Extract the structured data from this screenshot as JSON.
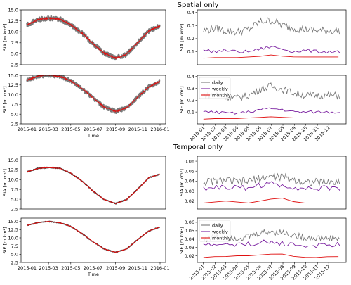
{
  "sections": [
    {
      "title": "Spatial only"
    },
    {
      "title": "Temporal only"
    }
  ],
  "colors": {
    "ensemble": "#7a7a7a",
    "mean": "#e01010",
    "daily": "#7a7a7a",
    "weekly": "#7a1fa0",
    "monthly": "#e01010"
  },
  "chart_data": [
    {
      "type": "line",
      "section": "Spatial only",
      "variable": "SIA",
      "ylabel": "SIA [m km²]",
      "xlabel": "",
      "ylim": [
        2.5,
        15.0
      ],
      "yticks": [
        2.5,
        5.0,
        7.5,
        10.0,
        12.5,
        15.0
      ],
      "ytick_labels": [
        "2.5",
        "5.0",
        "7.5",
        "10.0",
        "12.5",
        "15.0"
      ],
      "xlim": [
        "2015-01-01",
        "2015-12-31"
      ],
      "series": [
        {
          "values_note_x": [
            "2015-01-01",
            "2015-02-01",
            "2015-03-01",
            "2015-04-01",
            "2015-05-01",
            "2015-06-01",
            "2015-07-01",
            "2015-08-01",
            "2015-09-01",
            "2015-10-01",
            "2015-11-01",
            "2015-12-01",
            "2015-12-31"
          ],
          "values": [
            11.6,
            12.8,
            13.1,
            12.9,
            11.6,
            9.7,
            7.3,
            5.1,
            4.0,
            4.9,
            7.6,
            10.2,
            11.3
          ]
        }
      ],
      "spread": 0.5
    },
    {
      "type": "line",
      "section": "Spatial only",
      "variable": "SIE",
      "ylabel": "SIE [m km²]",
      "xlabel": "Time",
      "ylim": [
        2.5,
        15.0
      ],
      "yticks": [
        2.5,
        5.0,
        7.5,
        10.0,
        12.5,
        15.0
      ],
      "ytick_labels": [
        "2.5",
        "5.0",
        "7.5",
        "10.0",
        "12.5",
        "15.0"
      ],
      "xlim": [
        "2015-01-01",
        "2015-12-31"
      ],
      "xticks": [
        "2015-01-01",
        "2015-03-01",
        "2015-05-01",
        "2015-07-01",
        "2015-09-01",
        "2015-11-01",
        "2016-01-01"
      ],
      "xtick_labels": [
        "2015-01",
        "2015-03",
        "2015-05",
        "2015-07",
        "2015-09",
        "2015-11",
        "2016-01"
      ],
      "series": [
        {
          "values_note_x": [
            "2015-01-01",
            "2015-02-01",
            "2015-03-01",
            "2015-04-01",
            "2015-05-01",
            "2015-06-01",
            "2015-07-01",
            "2015-08-01",
            "2015-09-01",
            "2015-10-01",
            "2015-11-01",
            "2015-12-01",
            "2015-12-31"
          ],
          "values": [
            13.8,
            14.8,
            15.1,
            14.7,
            13.6,
            11.6,
            9.2,
            6.8,
            5.7,
            6.6,
            9.4,
            12.0,
            13.4
          ]
        }
      ],
      "spread": 0.5
    },
    {
      "type": "line",
      "section": "Spatial only",
      "variable": "SIA error",
      "ylabel": "SIA [m km²]",
      "ylim": [
        0.0,
        0.42
      ],
      "yticks": [
        0.1,
        0.2,
        0.3,
        0.4
      ],
      "ytick_labels": [
        "0.1",
        "0.2",
        "0.3",
        "0.4"
      ],
      "xlim": [
        "2015-01-01",
        "2015-12-31"
      ],
      "series": [
        {
          "name": "daily",
          "mean": [
            0.26,
            0.28,
            0.26,
            0.25,
            0.27,
            0.33,
            0.34,
            0.3,
            0.28,
            0.27,
            0.26,
            0.26
          ],
          "noise": 0.03
        },
        {
          "name": "weekly",
          "mean": [
            0.11,
            0.1,
            0.11,
            0.1,
            0.1,
            0.12,
            0.14,
            0.12,
            0.1,
            0.11,
            0.1,
            0.1
          ],
          "noise": 0.012
        },
        {
          "name": "monthly",
          "mean": [
            0.05,
            0.055,
            0.055,
            0.055,
            0.06,
            0.065,
            0.075,
            0.065,
            0.06,
            0.06,
            0.06,
            0.06
          ],
          "noise": 0
        }
      ]
    },
    {
      "type": "line",
      "section": "Spatial only",
      "variable": "SIE error",
      "ylabel": "SIE [m km²]",
      "ylim": [
        0.0,
        0.41
      ],
      "yticks": [
        0.1,
        0.2,
        0.3,
        0.4
      ],
      "ytick_labels": [
        "0.1",
        "0.2",
        "0.3",
        "0.4"
      ],
      "xlim": [
        "2015-01-01",
        "2015-12-31"
      ],
      "xticks": [
        "2015-01-01",
        "2015-02-01",
        "2015-03-01",
        "2015-04-01",
        "2015-05-01",
        "2015-06-01",
        "2015-07-01",
        "2015-08-01",
        "2015-09-01",
        "2015-10-01",
        "2015-11-01",
        "2015-12-01"
      ],
      "xtick_labels": [
        "2015-01",
        "2015-02",
        "2015-03",
        "2015-04",
        "2015-05",
        "2015-06",
        "2015-07",
        "2015-08",
        "2015-09",
        "2015-10",
        "2015-11",
        "2015-12"
      ],
      "legend": [
        "daily",
        "weekly",
        "monthly"
      ],
      "legend_position": "upper-left",
      "series": [
        {
          "name": "daily",
          "mean": [
            0.24,
            0.25,
            0.23,
            0.22,
            0.24,
            0.29,
            0.32,
            0.29,
            0.26,
            0.24,
            0.24,
            0.24
          ],
          "noise": 0.03
        },
        {
          "name": "weekly",
          "mean": [
            0.1,
            0.1,
            0.09,
            0.09,
            0.1,
            0.12,
            0.13,
            0.12,
            0.1,
            0.1,
            0.1,
            0.1
          ],
          "noise": 0.012
        },
        {
          "name": "monthly",
          "mean": [
            0.04,
            0.045,
            0.045,
            0.045,
            0.05,
            0.055,
            0.06,
            0.055,
            0.05,
            0.05,
            0.05,
            0.05
          ],
          "noise": 0
        }
      ]
    },
    {
      "type": "line",
      "section": "Temporal only",
      "variable": "SIA",
      "ylabel": "SIA [m km²]",
      "ylim": [
        2.5,
        16.0
      ],
      "yticks": [
        2.5,
        5.0,
        7.5,
        10.0,
        12.5,
        15.0
      ],
      "ytick_labels": [
        "2.5",
        "5.0",
        "7.5",
        "10.0",
        "12.5",
        "15.0"
      ],
      "xlim": [
        "2015-01-01",
        "2015-12-31"
      ],
      "series": [
        {
          "values_note_x": [
            "2015-01-01",
            "2015-02-01",
            "2015-03-01",
            "2015-04-01",
            "2015-05-01",
            "2015-06-01",
            "2015-07-01",
            "2015-08-01",
            "2015-09-01",
            "2015-10-01",
            "2015-11-01",
            "2015-12-01",
            "2015-12-31"
          ],
          "values": [
            12.0,
            12.9,
            13.1,
            12.9,
            11.7,
            9.6,
            7.1,
            4.9,
            3.9,
            4.9,
            7.6,
            10.5,
            11.4
          ]
        }
      ],
      "spread": 0.1
    },
    {
      "type": "line",
      "section": "Temporal only",
      "variable": "SIE",
      "ylabel": "SIE [m km²]",
      "xlabel": "Time",
      "ylim": [
        2.5,
        16.0
      ],
      "yticks": [
        2.5,
        5.0,
        7.5,
        10.0,
        12.5,
        15.0
      ],
      "ytick_labels": [
        "2.5",
        "5.0",
        "7.5",
        "10.0",
        "12.5",
        "15.0"
      ],
      "xlim": [
        "2015-01-01",
        "2015-12-31"
      ],
      "xticks": [
        "2015-01-01",
        "2015-03-01",
        "2015-05-01",
        "2015-07-01",
        "2015-09-01",
        "2015-11-01",
        "2016-01-01"
      ],
      "xtick_labels": [
        "2015-01",
        "2015-03",
        "2015-05",
        "2015-07",
        "2015-09",
        "2015-11",
        "2016-01"
      ],
      "series": [
        {
          "values_note_x": [
            "2015-01-01",
            "2015-02-01",
            "2015-03-01",
            "2015-04-01",
            "2015-05-01",
            "2015-06-01",
            "2015-07-01",
            "2015-08-01",
            "2015-09-01",
            "2015-10-01",
            "2015-11-01",
            "2015-12-01",
            "2015-12-31"
          ],
          "values": [
            13.8,
            14.7,
            15.0,
            14.6,
            13.5,
            11.3,
            8.8,
            6.6,
            5.6,
            6.6,
            9.5,
            12.1,
            13.3
          ]
        }
      ],
      "spread": 0.1
    },
    {
      "type": "line",
      "section": "Temporal only",
      "variable": "SIA error",
      "ylabel": "SIA [m km²]",
      "ylim": [
        0.012,
        0.065
      ],
      "yticks": [
        0.02,
        0.03,
        0.04,
        0.05,
        0.06
      ],
      "ytick_labels": [
        "0.02",
        "0.03",
        "0.04",
        "0.05",
        "0.06"
      ],
      "xlim": [
        "2015-01-01",
        "2015-12-31"
      ],
      "series": [
        {
          "name": "daily",
          "mean": [
            0.039,
            0.04,
            0.041,
            0.039,
            0.04,
            0.043,
            0.045,
            0.044,
            0.041,
            0.039,
            0.039,
            0.039
          ],
          "noise": 0.004
        },
        {
          "name": "weekly",
          "mean": [
            0.033,
            0.034,
            0.034,
            0.033,
            0.034,
            0.036,
            0.037,
            0.036,
            0.034,
            0.033,
            0.032,
            0.033
          ],
          "noise": 0.003
        },
        {
          "name": "monthly",
          "mean": [
            0.018,
            0.019,
            0.02,
            0.019,
            0.018,
            0.02,
            0.022,
            0.023,
            0.019,
            0.018,
            0.018,
            0.018
          ],
          "noise": 0
        }
      ]
    },
    {
      "type": "line",
      "section": "Temporal only",
      "variable": "SIE error",
      "ylabel": "SIE [m km²]",
      "ylim": [
        0.012,
        0.065
      ],
      "yticks": [
        0.02,
        0.03,
        0.04,
        0.05,
        0.06
      ],
      "ytick_labels": [
        "0.02",
        "0.03",
        "0.04",
        "0.05",
        "0.06"
      ],
      "xlim": [
        "2015-01-01",
        "2015-12-31"
      ],
      "xticks": [
        "2015-01-01",
        "2015-02-01",
        "2015-03-01",
        "2015-04-01",
        "2015-05-01",
        "2015-06-01",
        "2015-07-01",
        "2015-08-01",
        "2015-09-01",
        "2015-10-01",
        "2015-11-01",
        "2015-12-01"
      ],
      "xtick_labels": [
        "2015-01",
        "2015-02",
        "2015-03",
        "2015-04",
        "2015-05",
        "2015-06",
        "2015-07",
        "2015-08",
        "2015-09",
        "2015-10",
        "2015-11",
        "2015-12"
      ],
      "legend": [
        "daily",
        "weekly",
        "monthly"
      ],
      "legend_position": "upper-left",
      "series": [
        {
          "name": "daily",
          "mean": [
            0.04,
            0.042,
            0.043,
            0.041,
            0.043,
            0.047,
            0.049,
            0.048,
            0.044,
            0.042,
            0.041,
            0.041
          ],
          "noise": 0.004
        },
        {
          "name": "weekly",
          "mean": [
            0.033,
            0.033,
            0.034,
            0.033,
            0.034,
            0.036,
            0.036,
            0.035,
            0.033,
            0.032,
            0.032,
            0.033
          ],
          "noise": 0.003
        },
        {
          "name": "monthly",
          "mean": [
            0.018,
            0.019,
            0.019,
            0.02,
            0.02,
            0.021,
            0.022,
            0.022,
            0.019,
            0.018,
            0.018,
            0.019
          ],
          "noise": 0
        }
      ]
    }
  ]
}
